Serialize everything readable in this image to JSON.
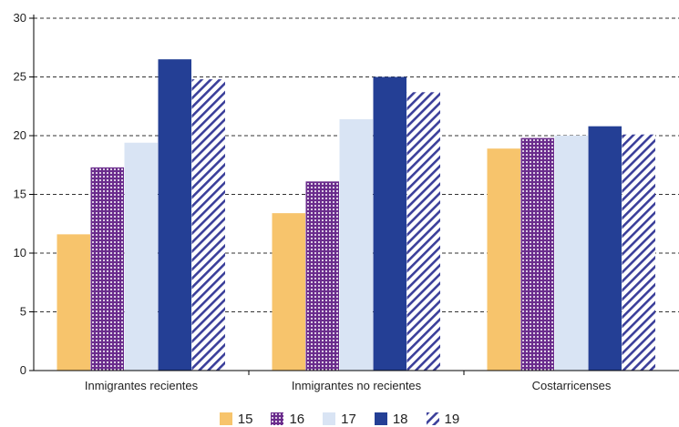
{
  "chart_data": {
    "type": "bar",
    "categories": [
      "Inmigrantes recientes",
      "Inmigrantes no recientes",
      "Costarricenses"
    ],
    "series": [
      {
        "name": "15",
        "values": [
          11.6,
          13.4,
          18.9
        ],
        "color": "#f7c46c",
        "pattern": "solid"
      },
      {
        "name": "16",
        "values": [
          17.3,
          16.1,
          19.8
        ],
        "color": "#6a2c8c",
        "pattern": "dots"
      },
      {
        "name": "17",
        "values": [
          19.4,
          21.4,
          20.0
        ],
        "color": "#d9e4f4",
        "pattern": "solid"
      },
      {
        "name": "18",
        "values": [
          26.5,
          25.0,
          20.8
        ],
        "color": "#243f95",
        "pattern": "solid"
      },
      {
        "name": "19",
        "values": [
          24.8,
          23.7,
          20.1
        ],
        "color": "#3b3f9a",
        "pattern": "hatch"
      }
    ],
    "ylim": [
      0,
      30
    ],
    "yticks": [
      0,
      5,
      10,
      15,
      20,
      25,
      30
    ],
    "grid": true,
    "legend_position": "bottom"
  }
}
